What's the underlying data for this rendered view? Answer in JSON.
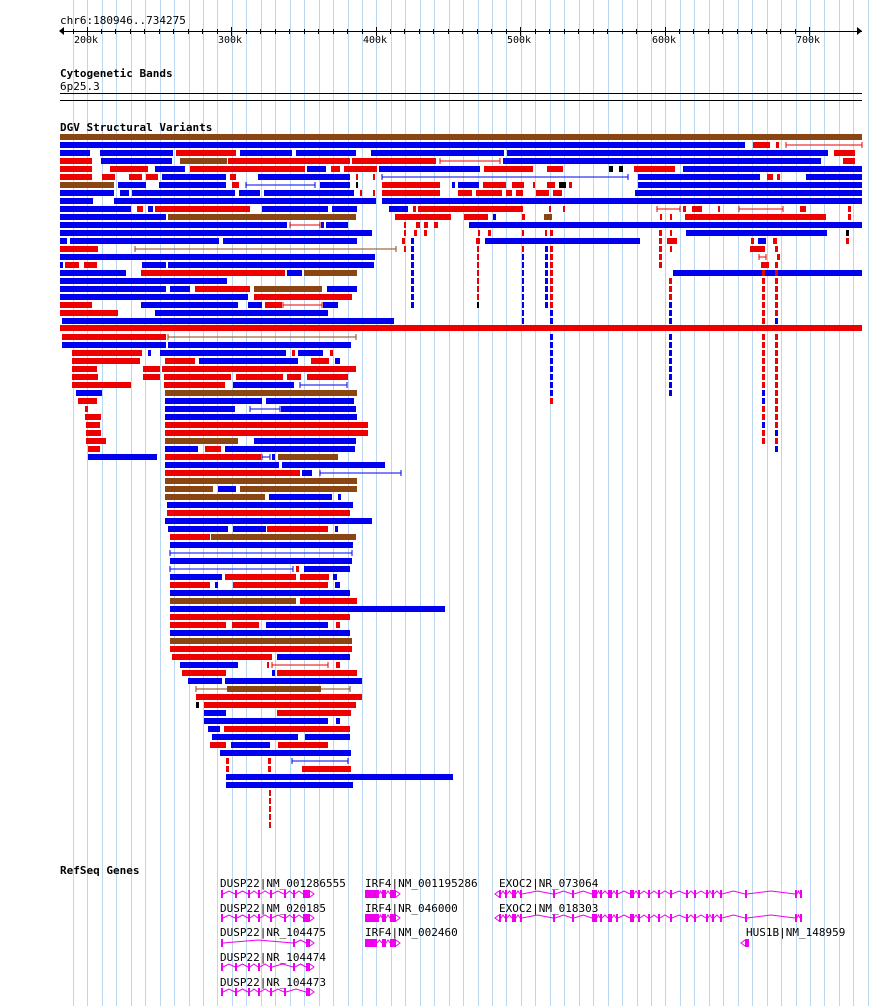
{
  "colors": {
    "gridline": "#bcd8f0",
    "gain": "#0000ee",
    "loss": "#ee0000",
    "both": "#8b4513",
    "gene": "#ee00ee",
    "inversion": "#000000"
  },
  "ruler": {
    "location": "chr6:180946..734275",
    "ticks": [
      "200k",
      "300k",
      "400k",
      "500k",
      "600k",
      "700k"
    ]
  },
  "cytobands": {
    "title": "Cytogenetic Bands",
    "band": "6p25.3"
  },
  "dgv": {
    "title": "DGV Structural Variants"
  },
  "refseq": {
    "title": "RefSeq Genes",
    "genes": [
      {
        "label": "DUSP22|NM_001286555"
      },
      {
        "label": "DUSP22|NM_020185"
      },
      {
        "label": "DUSP22|NR_104475"
      },
      {
        "label": "DUSP22|NR_104474"
      },
      {
        "label": "DUSP22|NR_104473"
      },
      {
        "label": "IRF4|NM_001195286"
      },
      {
        "label": "IRF4|NR_046000"
      },
      {
        "label": "IRF4|NM_002460"
      },
      {
        "label": "EXOC2|NR_073064"
      },
      {
        "label": "EXOC2|NM_018303"
      },
      {
        "label": "HUS1B|NM_148959"
      }
    ]
  }
}
